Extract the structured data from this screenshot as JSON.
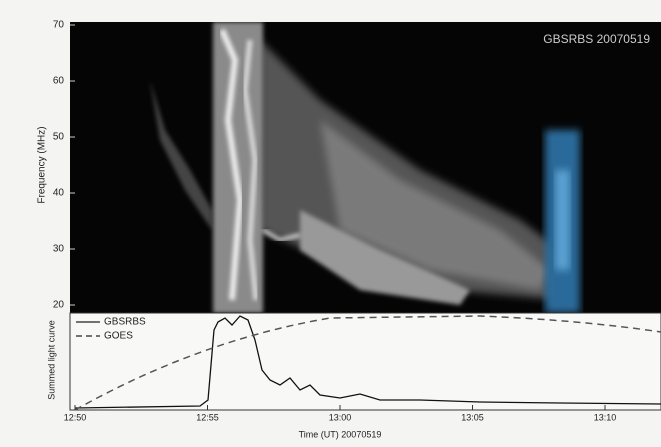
{
  "chart_data": {
    "type": "spectrogram",
    "annotation": "GBSRBS 20070519",
    "ylabel": "Frequency (MHz)",
    "ylim": [
      20,
      70
    ],
    "yticks": [
      20,
      30,
      40,
      50,
      60,
      70
    ],
    "lightcurve": {
      "ylabel": "Summed light curve",
      "xlabel": "Time (UT) 20070519",
      "xticks": [
        "12:50",
        "12:55",
        "13:00",
        "13:05",
        "13:10"
      ],
      "legend": [
        {
          "name": "GBSRBS",
          "style": "solid"
        },
        {
          "name": "GOES",
          "style": "dashed"
        }
      ]
    }
  }
}
